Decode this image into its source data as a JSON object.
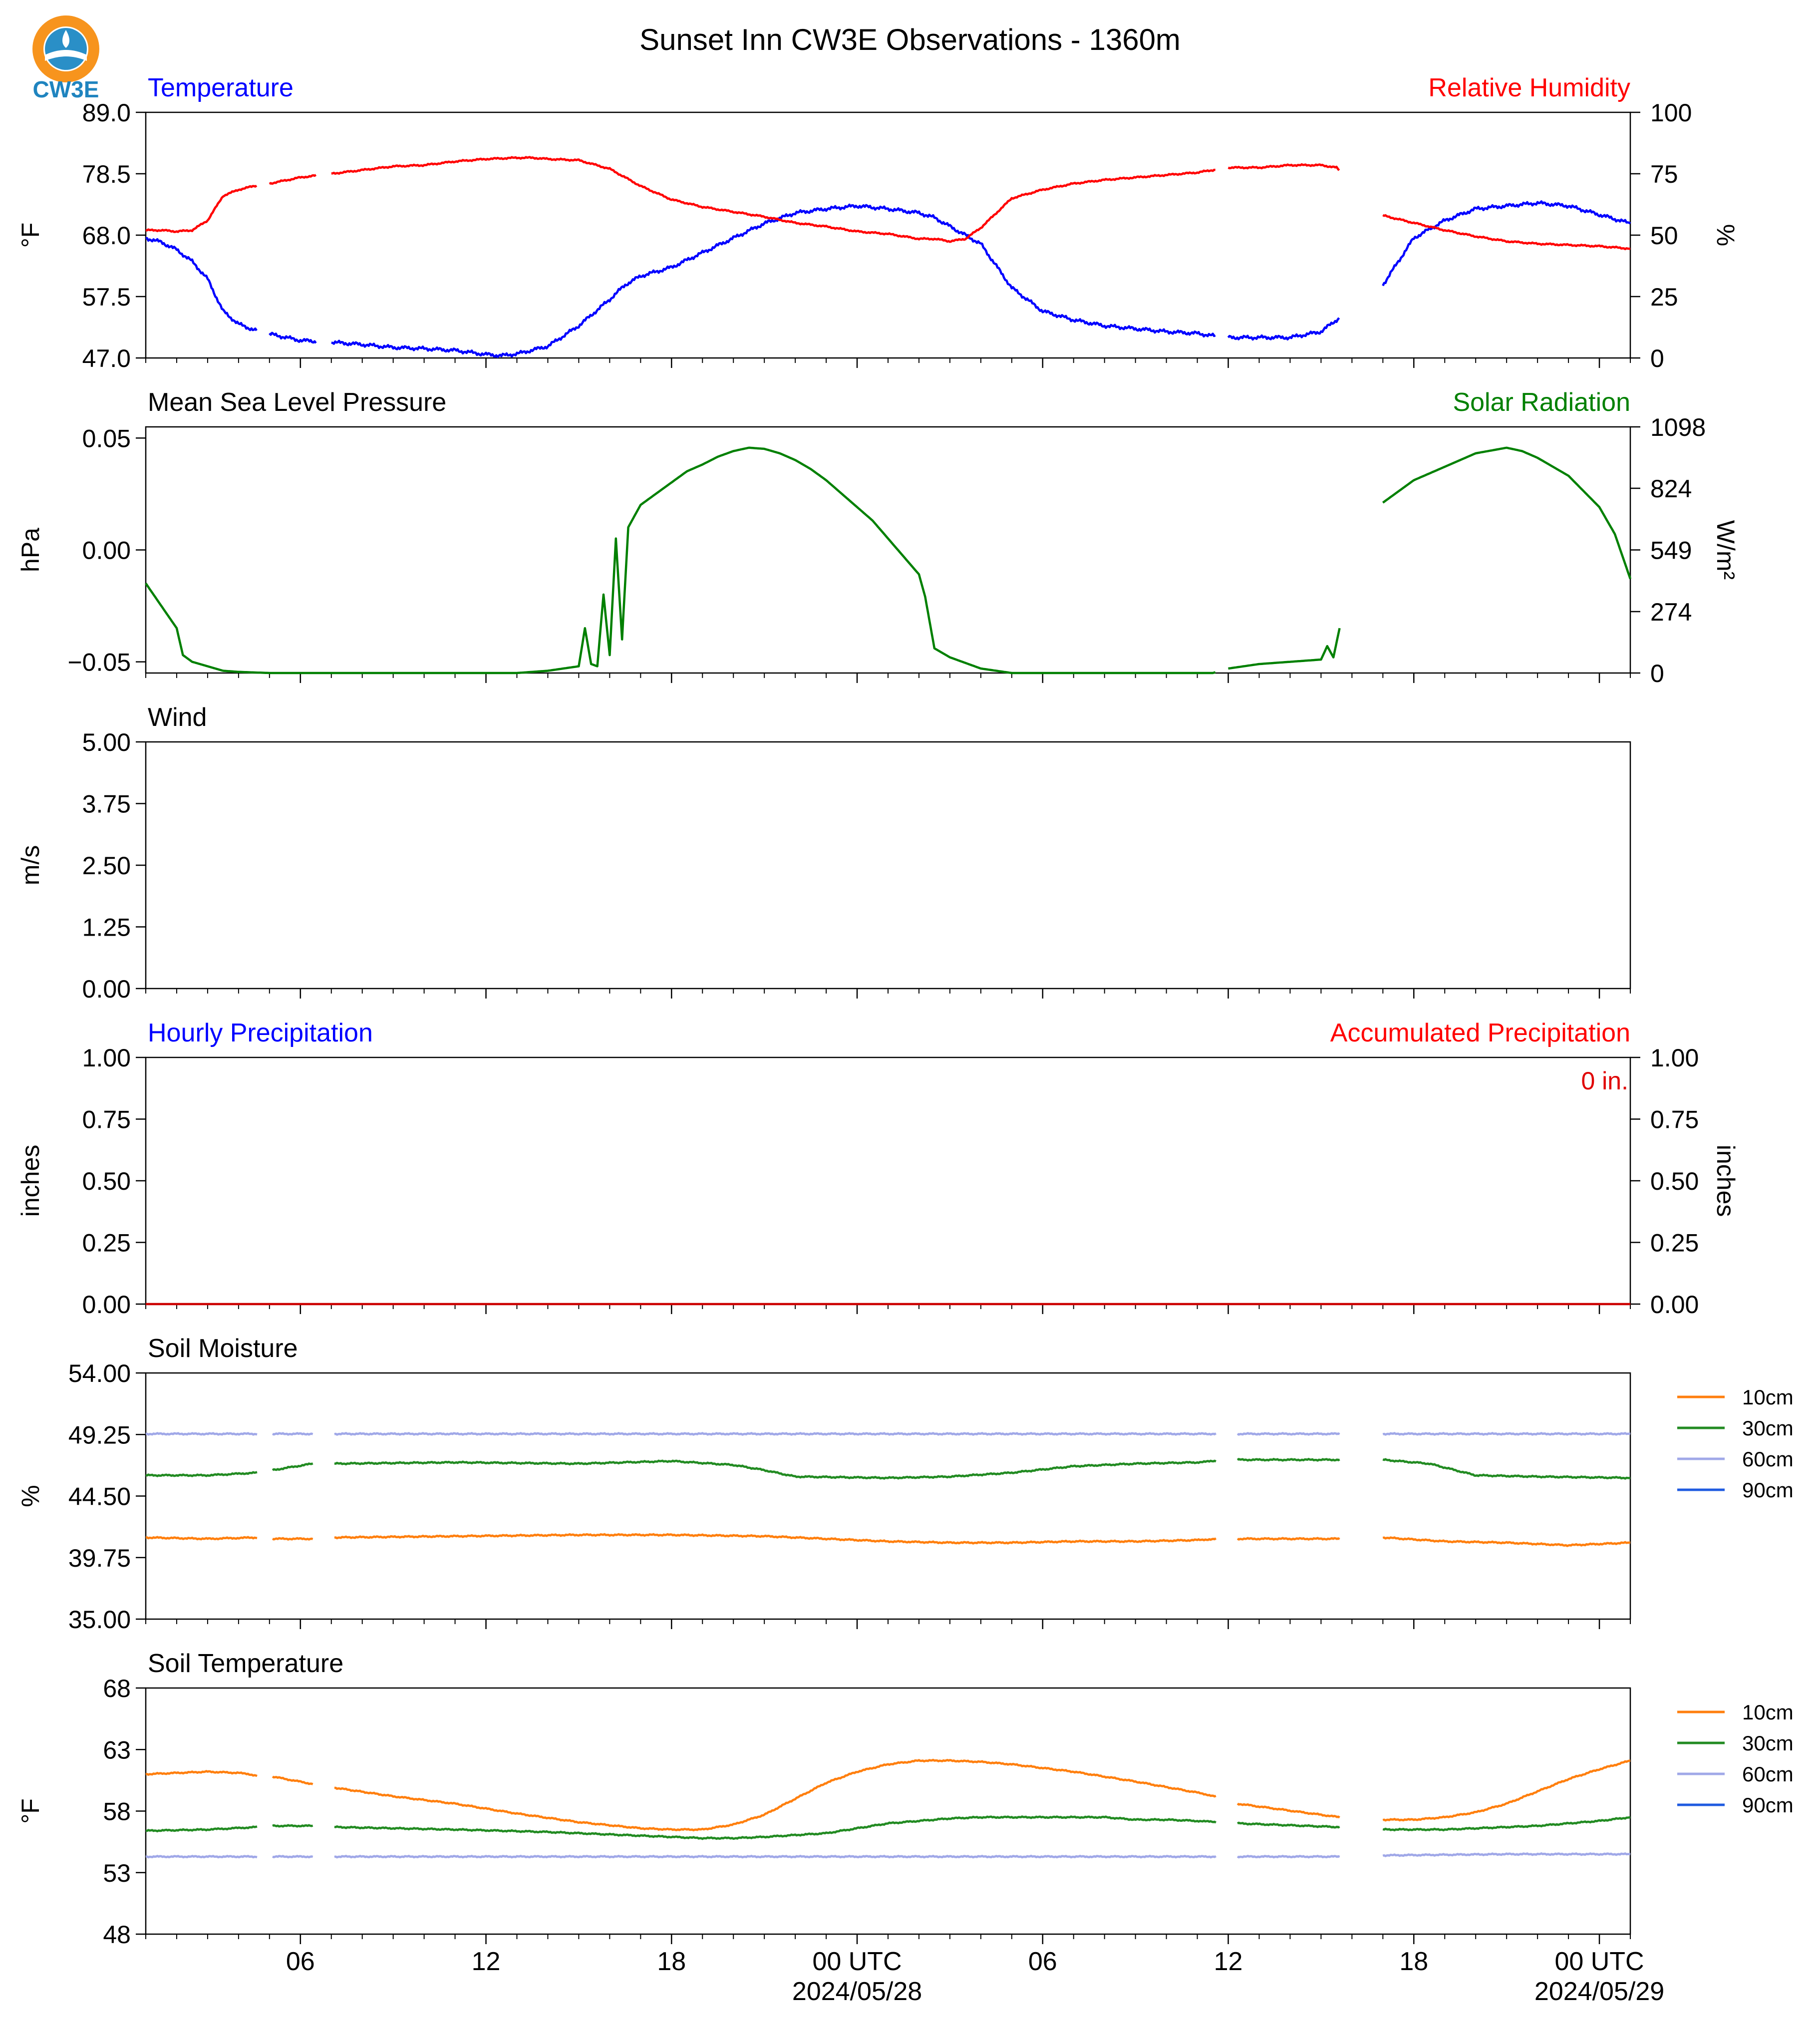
{
  "title": "Sunset Inn CW3E Observations - 1360m",
  "logo_text": "CW3E",
  "x_axis": {
    "hour_ticks": [
      {
        "h": 5,
        "label": "06"
      },
      {
        "h": 11,
        "label": "12"
      },
      {
        "h": 17,
        "label": "18"
      },
      {
        "h": 23,
        "label": "00 UTC",
        "sublabel": "2024/05/28"
      },
      {
        "h": 29,
        "label": "06"
      },
      {
        "h": 35,
        "label": "12"
      },
      {
        "h": 41,
        "label": "18"
      },
      {
        "h": 47,
        "label": "00 UTC",
        "sublabel": "2024/05/29"
      }
    ],
    "range_hours": [
      0,
      48
    ]
  },
  "chart_data": [
    {
      "type": "line",
      "left_label": "Temperature",
      "right_label": "Relative Humidity",
      "left_color": "#0000ff",
      "right_color": "#ff0000",
      "ylabel": "°F",
      "ylabel2": "%",
      "ylim": [
        47.0,
        89.0
      ],
      "y2lim": [
        0,
        100
      ],
      "yticks": [
        "47.0",
        "57.5",
        "68.0",
        "78.5",
        "89.0"
      ],
      "y2ticks": [
        "0",
        "25",
        "50",
        "75",
        "100"
      ],
      "series": [
        {
          "axis": "left",
          "color": "#0000ff",
          "gaps": [
            [
              3.6,
              4.0
            ],
            [
              5.5,
              6.0
            ],
            [
              34.6,
              35.0
            ],
            [
              38.6,
              40.0
            ]
          ],
          "x": [
            0,
            0.5,
            1,
            1.5,
            2,
            2.5,
            3,
            3.5,
            4,
            5,
            6,
            7,
            8,
            9,
            10,
            11,
            11.5,
            12,
            13,
            14,
            15,
            15.5,
            16,
            17,
            18,
            19,
            20,
            21,
            22,
            23,
            24,
            25,
            25.5,
            26,
            27,
            28,
            29,
            30,
            31,
            32,
            33,
            34,
            34.5,
            35,
            36,
            37,
            38,
            38.5,
            40,
            41,
            42,
            43,
            44,
            45,
            46,
            47,
            48
          ],
          "y": [
            67.5,
            66.8,
            65.5,
            63.5,
            60.5,
            55.0,
            52.8,
            51.8,
            51.1,
            50.0,
            49.7,
            49.3,
            48.8,
            48.6,
            48.3,
            47.6,
            47.4,
            47.7,
            49.0,
            52.5,
            57.0,
            59.5,
            61.0,
            62.5,
            65.0,
            67.5,
            70.0,
            71.8,
            72.5,
            73.0,
            72.5,
            71.8,
            71.0,
            69.5,
            66.5,
            59.0,
            55.0,
            53.5,
            52.5,
            52.0,
            51.5,
            51.2,
            50.8,
            50.5,
            50.5,
            50.5,
            51.5,
            53.5,
            59.5,
            67.5,
            70.5,
            72.5,
            73.0,
            73.5,
            73.0,
            71.5,
            70.0
          ]
        },
        {
          "axis": "right",
          "color": "#ff0000",
          "gaps": [
            [
              3.6,
              4.0
            ],
            [
              5.5,
              6.0
            ],
            [
              34.6,
              35.0
            ],
            [
              38.6,
              40.0
            ]
          ],
          "x": [
            0,
            0.5,
            1,
            1.5,
            2,
            2.5,
            3,
            3.5,
            4,
            5,
            6,
            7,
            8,
            9,
            10,
            11,
            12,
            12.5,
            13,
            14,
            15,
            16,
            17,
            18,
            19,
            20,
            21,
            22,
            23,
            24,
            25,
            25.5,
            26,
            26.5,
            27,
            28,
            29,
            30,
            31,
            32,
            33,
            34,
            34.5,
            35,
            36,
            37,
            38,
            38.5,
            40,
            41,
            42,
            43,
            44,
            45,
            46,
            47,
            48
          ],
          "y": [
            52,
            52,
            51.5,
            52,
            56,
            66,
            68.5,
            70,
            71,
            73.5,
            75,
            76.5,
            78,
            78.5,
            80,
            81,
            81.5,
            81.5,
            81,
            80.5,
            77,
            70,
            64.5,
            61.5,
            59.5,
            57.5,
            55,
            53.5,
            51.5,
            50.5,
            48.5,
            48.5,
            47.5,
            48.5,
            53,
            65,
            68.5,
            71,
            72.5,
            73.5,
            74.5,
            75.5,
            76.5,
            77.5,
            77.5,
            78.5,
            78.5,
            77.5,
            58,
            55,
            52,
            49.5,
            47.5,
            46.5,
            46,
            45.5,
            44.5
          ]
        }
      ]
    },
    {
      "type": "line",
      "left_label": "Mean Sea Level Pressure",
      "right_label": "Solar Radiation",
      "left_color": "#000000",
      "right_color": "#008000",
      "ylabel": "hPa",
      "ylabel2": "W/m²",
      "ylim": [
        -0.055,
        0.055
      ],
      "y2lim": [
        0,
        1098
      ],
      "yticks": [
        "−0.05",
        "0.00",
        "0.05"
      ],
      "ytick_values": [
        -0.05,
        0.0,
        0.05
      ],
      "y2ticks": [
        "0",
        "274",
        "549",
        "824",
        "1098"
      ],
      "y2tick_values": [
        0,
        274,
        549,
        824,
        1098
      ],
      "series": [
        {
          "axis": "right",
          "color": "#008000",
          "gaps": [
            [
              34.6,
              35.0
            ],
            [
              38.6,
              40.0
            ]
          ],
          "x": [
            0,
            1,
            1.2,
            1.5,
            2,
            2.5,
            3,
            4,
            8,
            12,
            13,
            14,
            14.2,
            14.4,
            14.6,
            14.8,
            15,
            15.2,
            15.4,
            15.6,
            15.8,
            16,
            16.5,
            17,
            17.5,
            18,
            18.5,
            19,
            19.5,
            20,
            20.5,
            21,
            21.5,
            22,
            22.5,
            23,
            23.5,
            24,
            25,
            25.2,
            25.5,
            26,
            27,
            28,
            30,
            32,
            34,
            34.5,
            35,
            36,
            37,
            38,
            38.2,
            38.4,
            38.6,
            40,
            40.5,
            41,
            42,
            43,
            44,
            44.5,
            45,
            46,
            47,
            47.5,
            48
          ],
          "y": [
            400,
            200,
            80,
            50,
            30,
            10,
            5,
            0,
            0,
            0,
            10,
            30,
            200,
            40,
            30,
            350,
            80,
            600,
            150,
            650,
            700,
            750,
            800,
            850,
            900,
            930,
            965,
            990,
            1005,
            1000,
            980,
            950,
            910,
            860,
            800,
            740,
            680,
            600,
            440,
            340,
            110,
            70,
            20,
            0,
            0,
            0,
            0,
            0,
            20,
            40,
            50,
            60,
            120,
            70,
            200,
            760,
            810,
            860,
            920,
            980,
            1005,
            990,
            960,
            880,
            740,
            620,
            420
          ]
        }
      ]
    },
    {
      "type": "line",
      "left_label": "Wind",
      "ylabel": "m/s",
      "ylim": [
        0,
        5
      ],
      "yticks": [
        "0.00",
        "1.25",
        "2.50",
        "3.75",
        "5.00"
      ],
      "series": []
    },
    {
      "type": "line",
      "left_label": "Hourly Precipitation",
      "right_label": "Accumulated Precipitation",
      "left_color": "#0000ff",
      "right_color": "#ff0000",
      "ylabel": "inches",
      "ylabel2": "inches",
      "ylim": [
        0,
        1
      ],
      "y2lim": [
        0,
        1
      ],
      "yticks": [
        "0.00",
        "0.25",
        "0.50",
        "0.75",
        "1.00"
      ],
      "y2ticks": [
        "0.00",
        "0.25",
        "0.50",
        "0.75",
        "1.00"
      ],
      "annotation": "0 in.",
      "series": [
        {
          "axis": "right",
          "color": "#cc0000",
          "x": [
            0,
            48
          ],
          "y": [
            0,
            0
          ]
        }
      ]
    },
    {
      "type": "line",
      "left_label": "Soil Moisture",
      "ylabel": "%",
      "ylim": [
        35.0,
        54.0
      ],
      "yticks": [
        "35.00",
        "39.75",
        "44.50",
        "49.25",
        "54.00"
      ],
      "legend": [
        {
          "name": "10cm",
          "color": "#ff7f0e"
        },
        {
          "name": "30cm",
          "color": "#228b22"
        },
        {
          "name": "60cm",
          "color": "#a0a8e8"
        },
        {
          "name": "90cm",
          "color": "#1f5be0"
        }
      ],
      "series": [
        {
          "name": "10cm",
          "color": "#ff7f0e",
          "gaps": [
            [
              3.6,
              4.1
            ],
            [
              5.4,
              6.1
            ],
            [
              34.6,
              35.3
            ],
            [
              38.6,
              40.0
            ]
          ],
          "x": [
            0,
            2,
            3.6,
            4.1,
            5.4,
            6.1,
            10,
            14,
            17,
            20,
            22,
            24,
            26,
            28,
            30,
            32,
            34,
            34.6,
            35.3,
            38.6,
            40,
            42,
            44,
            46,
            48
          ],
          "y": [
            41.3,
            41.2,
            41.3,
            41.2,
            41.2,
            41.3,
            41.4,
            41.5,
            41.5,
            41.4,
            41.2,
            41.0,
            40.9,
            40.9,
            41.0,
            41.0,
            41.1,
            41.2,
            41.2,
            41.2,
            41.3,
            41.0,
            40.9,
            40.7,
            40.9
          ]
        },
        {
          "name": "30cm",
          "color": "#228b22",
          "gaps": [
            [
              3.6,
              4.1
            ],
            [
              5.4,
              6.1
            ],
            [
              34.6,
              35.3
            ],
            [
              38.6,
              40.0
            ]
          ],
          "x": [
            0,
            2,
            3.6,
            4.1,
            5.4,
            6.1,
            10,
            14,
            17,
            19,
            20,
            21,
            24,
            26,
            28,
            30,
            32,
            34,
            34.6,
            35.3,
            38.6,
            40,
            41.5,
            43,
            45,
            48
          ],
          "y": [
            46.1,
            46.1,
            46.3,
            46.5,
            47.0,
            47.0,
            47.1,
            47.0,
            47.2,
            46.9,
            46.5,
            46.0,
            45.9,
            46.0,
            46.3,
            46.8,
            47.0,
            47.1,
            47.2,
            47.3,
            47.3,
            47.3,
            47.0,
            46.1,
            46.0,
            45.9
          ]
        },
        {
          "name": "60cm",
          "color": "#a0a8e8",
          "gaps": [
            [
              3.6,
              4.1
            ],
            [
              5.4,
              6.1
            ],
            [
              34.6,
              35.3
            ],
            [
              38.6,
              40.0
            ]
          ],
          "x": [
            0,
            3.6,
            4.1,
            5.4,
            6.1,
            10,
            20,
            30,
            34.6,
            35.3,
            38.6,
            40,
            44,
            48
          ],
          "y": [
            49.3,
            49.3,
            49.3,
            49.3,
            49.3,
            49.3,
            49.3,
            49.3,
            49.3,
            49.3,
            49.3,
            49.3,
            49.3,
            49.3
          ]
        }
      ]
    },
    {
      "type": "line",
      "left_label": "Soil Temperature",
      "ylabel": "°F",
      "ylim": [
        48,
        68
      ],
      "yticks": [
        "48",
        "53",
        "58",
        "63",
        "68"
      ],
      "legend": [
        {
          "name": "10cm",
          "color": "#ff7f0e"
        },
        {
          "name": "30cm",
          "color": "#228b22"
        },
        {
          "name": "60cm",
          "color": "#a0a8e8"
        },
        {
          "name": "90cm",
          "color": "#1f5be0"
        }
      ],
      "series": [
        {
          "name": "10cm",
          "color": "#ff7f0e",
          "gaps": [
            [
              3.6,
              4.1
            ],
            [
              5.4,
              6.1
            ],
            [
              34.6,
              35.3
            ],
            [
              38.6,
              40.0
            ]
          ],
          "x": [
            0,
            1,
            2,
            3,
            3.6,
            4.1,
            5.4,
            6.1,
            8,
            10,
            12,
            14,
            16,
            17,
            18,
            19,
            20,
            21,
            22,
            23,
            24,
            25,
            26,
            27,
            28,
            30,
            32,
            34,
            34.6,
            35.3,
            38.6,
            40,
            41,
            42,
            43,
            44,
            45,
            46,
            47,
            48
          ],
          "y": [
            61.0,
            61.1,
            61.2,
            61.1,
            60.9,
            60.8,
            60.2,
            59.9,
            59.2,
            58.6,
            57.8,
            57.1,
            56.6,
            56.5,
            56.5,
            56.9,
            57.7,
            59.0,
            60.3,
            61.2,
            61.8,
            62.1,
            62.1,
            62.0,
            61.8,
            61.2,
            60.4,
            59.5,
            59.2,
            58.6,
            57.5,
            57.3,
            57.3,
            57.5,
            57.9,
            58.6,
            59.6,
            60.6,
            61.4,
            62.1
          ]
        },
        {
          "name": "30cm",
          "color": "#228b22",
          "gaps": [
            [
              3.6,
              4.1
            ],
            [
              5.4,
              6.1
            ],
            [
              34.6,
              35.3
            ],
            [
              38.6,
              40.0
            ]
          ],
          "x": [
            0,
            2,
            3.6,
            4.1,
            5.4,
            6.1,
            10,
            13,
            15,
            17,
            18,
            19,
            20,
            22,
            23,
            24,
            25,
            26,
            27,
            28,
            30,
            31,
            32,
            33,
            34,
            34.6,
            35.3,
            38.6,
            40,
            42,
            43,
            45,
            47,
            48
          ],
          "y": [
            56.4,
            56.5,
            56.7,
            56.8,
            56.8,
            56.7,
            56.5,
            56.3,
            56.1,
            55.9,
            55.8,
            55.8,
            55.9,
            56.2,
            56.6,
            57.0,
            57.2,
            57.4,
            57.5,
            57.5,
            57.5,
            57.5,
            57.3,
            57.3,
            57.2,
            57.1,
            57.0,
            56.7,
            56.5,
            56.5,
            56.6,
            56.8,
            57.2,
            57.5
          ]
        },
        {
          "name": "60cm",
          "color": "#a0a8e8",
          "gaps": [
            [
              3.6,
              4.1
            ],
            [
              5.4,
              6.1
            ],
            [
              34.6,
              35.3
            ],
            [
              38.6,
              40.0
            ]
          ],
          "x": [
            0,
            3.6,
            4.1,
            5.4,
            6.1,
            10,
            20,
            30,
            34.6,
            35.3,
            38.6,
            40,
            44,
            48
          ],
          "y": [
            54.3,
            54.3,
            54.3,
            54.3,
            54.3,
            54.3,
            54.3,
            54.3,
            54.3,
            54.3,
            54.3,
            54.4,
            54.5,
            54.5
          ]
        }
      ]
    }
  ]
}
